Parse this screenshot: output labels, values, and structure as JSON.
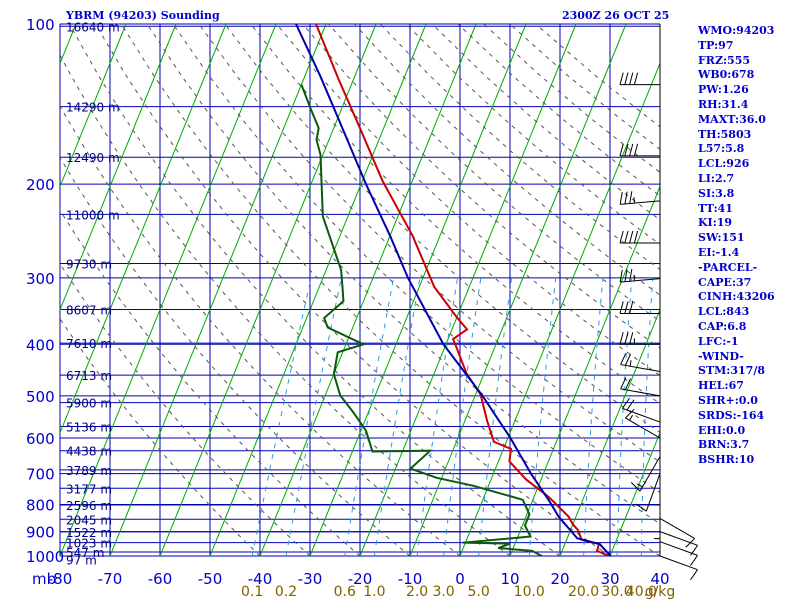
{
  "header": {
    "title": "YBRM (94203) Sounding",
    "timestamp": "2300Z 26 OCT 25"
  },
  "indices": [
    "WMO:94203",
    "TP:97",
    "FRZ:555",
    "WB0:678",
    "PW:1.26",
    "RH:31.4",
    "MAXT:36.0",
    "TH:5803",
    "L57:5.8",
    "LCL:926",
    "LI:2.7",
    "SI:3.8",
    "TT:41",
    "KI:19",
    "SW:151",
    "EI:-1.4",
    "-PARCEL-",
    "CAPE:37",
    "CINH:43206",
    "LCL:843",
    "CAP:6.8",
    "LFC:-1",
    "-WIND-",
    "STM:317/8",
    "HEL:67",
    "SHR+:0.0",
    "SRDS:-164",
    "EHI:0.0",
    "BRN:3.7",
    "BSHR:10"
  ],
  "chart_data": {
    "type": "line",
    "diagram": "skew-T log-P",
    "xlim": [
      -80,
      40
    ],
    "ylim": [
      1000,
      100
    ],
    "y_scale": "log",
    "grid": true,
    "x_unit_label": "mb",
    "pressure_ticks": [
      100,
      200,
      300,
      400,
      500,
      600,
      700,
      800,
      900,
      1000
    ],
    "temperature_ticks": [
      -80,
      -70,
      -60,
      -50,
      -40,
      -30,
      -20,
      -10,
      0,
      10,
      20,
      30,
      40
    ],
    "mixing_ratio_labels": [
      {
        "value": 0.1,
        "label": "0.1"
      },
      {
        "value": 0.2,
        "label": "0.2"
      },
      {
        "value": 0.6,
        "label": "0.6"
      },
      {
        "value": 1.0,
        "label": "1.0"
      },
      {
        "value": 2.0,
        "label": "2.0"
      },
      {
        "value": 3.0,
        "label": "3.0"
      },
      {
        "value": 5.0,
        "label": "5.0"
      },
      {
        "value": 10.0,
        "label": "10.0"
      },
      {
        "value": 20.0,
        "label": "20.0"
      },
      {
        "value": 30.0,
        "label": "30.0"
      },
      {
        "value": 40.0,
        "label": "40.0"
      }
    ],
    "mixing_ratio_unit": "g/kg",
    "height_levels": [
      {
        "p": 101,
        "label": "16640 m"
      },
      {
        "p": 143,
        "label": "14290 m"
      },
      {
        "p": 178,
        "label": "12490 m"
      },
      {
        "p": 228,
        "label": "11000 m"
      },
      {
        "p": 282,
        "label": "9730 m"
      },
      {
        "p": 344,
        "label": "8607 m"
      },
      {
        "p": 398,
        "label": "7610 m"
      },
      {
        "p": 457,
        "label": "6713 m"
      },
      {
        "p": 515,
        "label": "5900 m"
      },
      {
        "p": 571,
        "label": "5136 m"
      },
      {
        "p": 634,
        "label": "4438 m"
      },
      {
        "p": 689,
        "label": "3789 m"
      },
      {
        "p": 746,
        "label": "3177 m"
      },
      {
        "p": 802,
        "label": "2596 m"
      },
      {
        "p": 853,
        "label": "2045 m"
      },
      {
        "p": 901,
        "label": "1522 m"
      },
      {
        "p": 944,
        "label": "1023 m"
      },
      {
        "p": 983,
        "label": "547 m"
      },
      {
        "p": 1015,
        "label": "97 m"
      }
    ],
    "series": [
      {
        "id": "temperature",
        "color": "#cc0000",
        "points": [
          [
            1006,
            30.5
          ],
          [
            978,
            27.0
          ],
          [
            948,
            26.8
          ],
          [
            944,
            25.5
          ],
          [
            932,
            23.0
          ],
          [
            894,
            21.5
          ],
          [
            872,
            20.0
          ],
          [
            843,
            18.5
          ],
          [
            775,
            13.0
          ],
          [
            718,
            7.0
          ],
          [
            664,
            2.2
          ],
          [
            629,
            1.5
          ],
          [
            610,
            -2.5
          ],
          [
            558,
            -5.5
          ],
          [
            497,
            -9.0
          ],
          [
            454,
            -13.5
          ],
          [
            407,
            -17.5
          ],
          [
            391,
            -19.0
          ],
          [
            375,
            -17.0
          ],
          [
            356,
            -20.0
          ],
          [
            312,
            -27.0
          ],
          [
            250,
            -35.5
          ],
          [
            197,
            -46.0
          ],
          [
            160,
            -54.0
          ],
          [
            127,
            -63.0
          ],
          [
            100,
            -72.0
          ]
        ]
      },
      {
        "id": "dewpoint",
        "color": "#0b5a0b",
        "points": [
          [
            1006,
            17.0
          ],
          [
            978,
            14.0
          ],
          [
            966,
            7.0
          ],
          [
            948,
            9.0
          ],
          [
            944,
            -0.5
          ],
          [
            926,
            9.0
          ],
          [
            919,
            12.5
          ],
          [
            876,
            10.5
          ],
          [
            835,
            10.5
          ],
          [
            784,
            8.0
          ],
          [
            738,
            -3.0
          ],
          [
            713,
            -11.0
          ],
          [
            685,
            -17.0
          ],
          [
            634,
            -14.5
          ],
          [
            636,
            -26.0
          ],
          [
            581,
            -29.0
          ],
          [
            537,
            -33.0
          ],
          [
            499,
            -37.0
          ],
          [
            455,
            -40.0
          ],
          [
            414,
            -41.0
          ],
          [
            400,
            -36.5
          ],
          [
            372,
            -45.0
          ],
          [
            357,
            -46.5
          ],
          [
            332,
            -44.0
          ],
          [
            310,
            -45.5
          ],
          [
            290,
            -47.0
          ],
          [
            230,
            -55.0
          ],
          [
            176,
            -60.5
          ],
          [
            165,
            -62.5
          ],
          [
            157,
            -63.0
          ],
          [
            145,
            -66.0
          ],
          [
            130,
            -70.0
          ]
        ]
      },
      {
        "id": "parcel",
        "color": "#0000aa",
        "points": [
          [
            1006,
            30.5
          ],
          [
            950,
            27.0
          ],
          [
            926,
            22.0
          ],
          [
            843,
            16.5
          ],
          [
            790,
            13.5
          ],
          [
            700,
            7.5
          ],
          [
            600,
            0.5
          ],
          [
            500,
            -8.5
          ],
          [
            400,
            -20.5
          ],
          [
            300,
            -33.0
          ],
          [
            250,
            -40.0
          ],
          [
            200,
            -49.0
          ],
          [
            150,
            -60.0
          ],
          [
            125,
            -67.0
          ],
          [
            100,
            -76.0
          ]
        ]
      }
    ],
    "winds": [
      {
        "p": 130,
        "dir": 270,
        "kt": 40
      },
      {
        "p": 177,
        "dir": 270,
        "kt": 40
      },
      {
        "p": 215,
        "dir": 265,
        "kt": 35
      },
      {
        "p": 258,
        "dir": 270,
        "kt": 40
      },
      {
        "p": 301,
        "dir": 265,
        "kt": 35
      },
      {
        "p": 350,
        "dir": 270,
        "kt": 30
      },
      {
        "p": 400,
        "dir": 270,
        "kt": 35
      },
      {
        "p": 450,
        "dir": 280,
        "kt": 25
      },
      {
        "p": 500,
        "dir": 280,
        "kt": 20
      },
      {
        "p": 560,
        "dir": 290,
        "kt": 20
      },
      {
        "p": 600,
        "dir": 300,
        "kt": 15
      },
      {
        "p": 650,
        "dir": 210,
        "kt": 15
      },
      {
        "p": 700,
        "dir": 200,
        "kt": 10
      },
      {
        "p": 780,
        "dir": 180,
        "kt": 5
      },
      {
        "p": 850,
        "dir": 120,
        "kt": 10
      },
      {
        "p": 900,
        "dir": 110,
        "kt": 10
      },
      {
        "p": 940,
        "dir": 110,
        "kt": 10
      },
      {
        "p": 1000,
        "dir": 110,
        "kt": 10
      }
    ]
  }
}
